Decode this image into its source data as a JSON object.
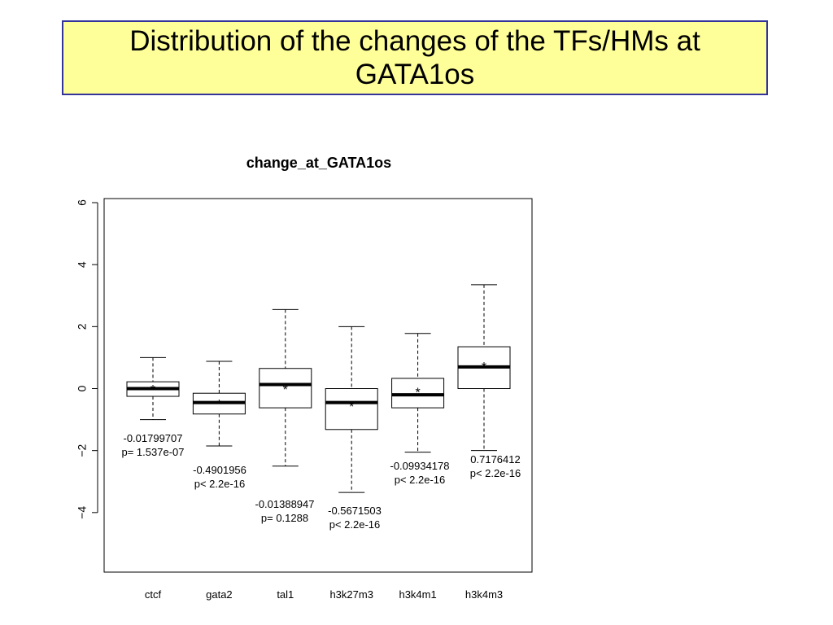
{
  "slide": {
    "title": "Distribution of the changes of the TFs/HMs at GATA1os"
  },
  "chart_data": {
    "type": "boxplot",
    "title": "change_at_GATA1os",
    "xlabel": "",
    "ylabel": "",
    "ylim": [
      -6,
      6
    ],
    "yticks": [
      -4,
      -2,
      0,
      2,
      4,
      6
    ],
    "yticklabels": [
      "−4",
      "−2",
      "0",
      "2",
      "4",
      "6"
    ],
    "grid": false,
    "colors": {
      "box": "#000000",
      "median": "#000000",
      "background": "#ffffff"
    },
    "categories": [
      "ctcf",
      "gata2",
      "tal1",
      "h3k27m3",
      "h3k4m1",
      "h3k4m3"
    ],
    "boxes": [
      {
        "label": "ctcf",
        "whisker_low": -1.0,
        "q1": -0.25,
        "median": 0.0,
        "q3": 0.22,
        "whisker_high": 1.0,
        "mean": -0.01799707,
        "annotation": [
          "-0.01799707",
          "p= 1.537e-07"
        ]
      },
      {
        "label": "gata2",
        "whisker_low": -1.85,
        "q1": -0.82,
        "median": -0.45,
        "q3": -0.15,
        "whisker_high": 0.88,
        "mean": -0.4901956,
        "annotation": [
          "-0.4901956",
          "p< 2.2e-16"
        ]
      },
      {
        "label": "tal1",
        "whisker_low": -2.5,
        "q1": -0.62,
        "median": 0.13,
        "q3": 0.65,
        "whisker_high": 2.55,
        "mean": -0.01388947,
        "annotation": [
          "-0.01388947",
          "p= 0.1288"
        ]
      },
      {
        "label": "h3k27m3",
        "whisker_low": -3.35,
        "q1": -1.32,
        "median": -0.45,
        "q3": 0.0,
        "whisker_high": 2.0,
        "mean": -0.5671503,
        "annotation": [
          "-0.5671503",
          "p< 2.2e-16"
        ]
      },
      {
        "label": "h3k4m1",
        "whisker_low": -2.05,
        "q1": -0.62,
        "median": -0.2,
        "q3": 0.33,
        "whisker_high": 1.78,
        "mean": -0.09934178,
        "annotation": [
          "-0.09934178",
          "p< 2.2e-16"
        ]
      },
      {
        "label": "h3k4m3",
        "whisker_low": -2.0,
        "q1": 0.0,
        "median": 0.7,
        "q3": 1.35,
        "whisker_high": 3.35,
        "mean": 0.7176412,
        "annotation": [
          "0.7176412",
          "p< 2.2e-16"
        ]
      }
    ]
  }
}
